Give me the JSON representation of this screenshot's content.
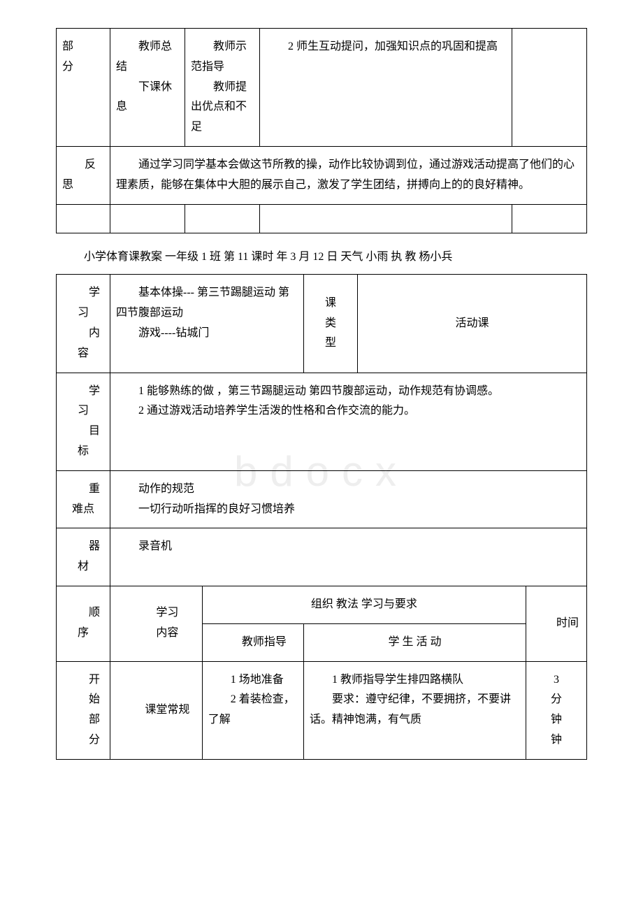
{
  "top_table": {
    "row1": {
      "c1": "部\n分",
      "c2": "　　教师总结\n　　下课休息",
      "c3": "　　教师示范指导\n　　教师提出优点和不足",
      "c4": "　　2 师生互动提问，加强知识点的巩固和提高",
      "c5": ""
    },
    "row2": {
      "c1": "　　反思",
      "c2": "　　通过学习同学基本会做这节所教的操，动作比较协调到位，通过游戏活动提高了他们的心理素质，能够在集体中大胆的展示自己，激发了学生团结，拼搏向上的的良好精神。"
    }
  },
  "caption": "小学体育课教案 一年级 1 班 第 11 课时 年 3 月 12 日 天气 小雨 执 教 杨小兵",
  "main_table": {
    "r1": {
      "label": "　　学习\n　　内容",
      "content": "　　基本体操--- 第三节踢腿运动 第四节腹部运动\n　　游戏----钻城门",
      "type_label": "课\n类\n型",
      "type_value": "活动课"
    },
    "r2": {
      "label": "　　学习\n　　目标",
      "content": "　　1 能够熟练的做 ，第三节踢腿运动 第四节腹部运动，动作规范有协调感。\n　　2 通过游戏活动培养学生活泼的性格和合作交流的能力。"
    },
    "r3": {
      "label": "　　重难点",
      "content": "　　动作的规范\n　　一切行动听指挥的良好习惯培养"
    },
    "r4": {
      "label": "　　器材",
      "content": "　　录音机"
    },
    "r5": {
      "label": "　　顺序",
      "sub1": "　　学习\n　　内容",
      "sub2_header": "组织 教法 学习与要求",
      "sub2a": "　　教师指导",
      "sub2b": "学 生 活 动",
      "sub3": "　　时间"
    },
    "r6": {
      "c1": "　　开\n　　始\n　　部\n　　分",
      "c2": "　　课堂常规",
      "c3": "　　1 场地准备\n　　2 着装检查，了解",
      "c4": "　　1 教师指导学生排四路横队\n　　要求：遵守纪律，不要拥挤，不要讲话。精神饱满，有气质",
      "c5": "3\n分\n钟\n钟"
    }
  },
  "watermark": "bdocx"
}
